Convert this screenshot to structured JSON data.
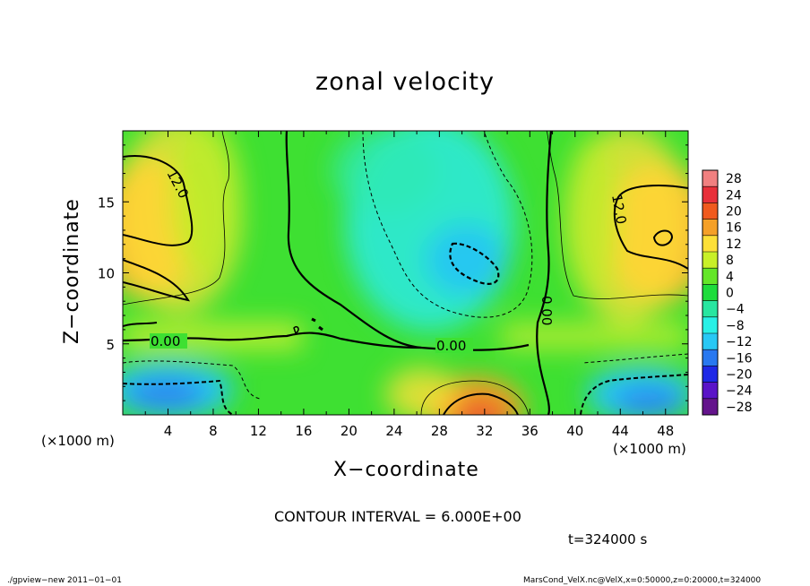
{
  "chart_data": {
    "type": "heatmap",
    "title": "zonal velocity",
    "xlabel": "X−coordinate",
    "ylabel": "Z−coordinate",
    "x_unit": "(×1000 m)",
    "y_unit": "(×1000 m)",
    "xlim": [
      0,
      50
    ],
    "ylim": [
      0,
      20
    ],
    "x_ticks": [
      4,
      8,
      12,
      16,
      20,
      24,
      28,
      32,
      36,
      40,
      44,
      48
    ],
    "y_ticks": [
      5,
      10,
      15
    ],
    "colorbar": {
      "levels": [
        28,
        24,
        20,
        16,
        12,
        8,
        4,
        0,
        -4,
        -8,
        -12,
        -16,
        -20,
        -24,
        -28
      ],
      "labels": [
        "28",
        "24",
        "20",
        "16",
        "12",
        "8",
        "4",
        "0",
        "−4",
        "−8",
        "−12",
        "−16",
        "−20",
        "−24",
        "−28"
      ],
      "colors": [
        "#f08080",
        "#e8303a",
        "#f05a1e",
        "#f5a028",
        "#fde038",
        "#c8f028",
        "#64e628",
        "#1edc3c",
        "#28e6a0",
        "#28f0e6",
        "#28c8f5",
        "#2878f0",
        "#1e28e6",
        "#5a14c8",
        "#64148c"
      ]
    },
    "contour_labels": [
      {
        "text": "12.0",
        "x": 5.8,
        "z": 15.8
      },
      {
        "text": "12.0",
        "x": 44.4,
        "z": 14.4
      },
      {
        "text": "0.00",
        "x": 3.9,
        "z": 5.2
      },
      {
        "text": "0.00",
        "x": 29.3,
        "z": 4.6
      },
      {
        "text": "0.00",
        "x": 37.8,
        "z": 7.6
      }
    ],
    "contour_interval": "CONTOUR INTERVAL = 6.000E+00",
    "time": "t=324000 s"
  },
  "footer": {
    "left": "./gpview−new   2011−01−01",
    "right": "MarsCond_VelX.nc@VelX,x=0:50000,z=0:20000,t=324000"
  }
}
